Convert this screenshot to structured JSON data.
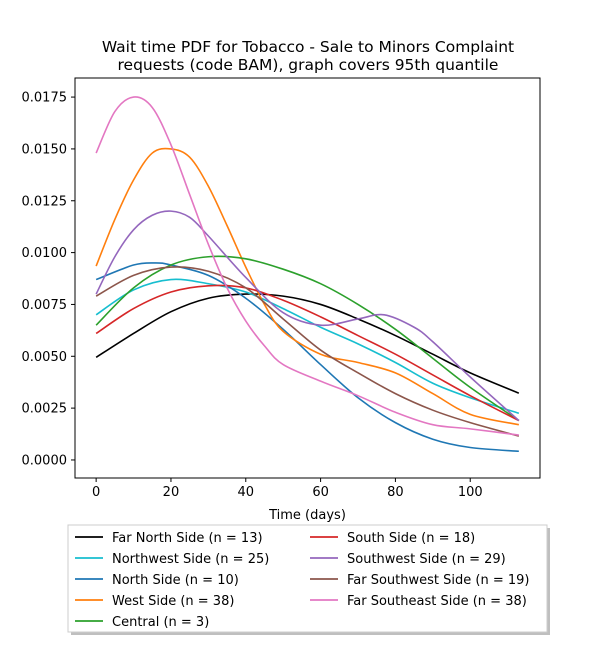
{
  "chart_data": {
    "type": "line",
    "title_lines": [
      "Wait time PDF for Tobacco - Sale to Minors Complaint",
      "requests (code BAM), graph covers 95th quantile"
    ],
    "xlabel": "Time (days)",
    "ylabel": "",
    "xlim": [
      -5.65,
      118.65
    ],
    "ylim": [
      -0.00087,
      0.01842
    ],
    "x_ticks": [
      0,
      20,
      40,
      60,
      80,
      100
    ],
    "x_tick_labels": [
      "0",
      "20",
      "40",
      "60",
      "80",
      "100"
    ],
    "y_ticks": [
      0,
      0.0025,
      0.005,
      0.0075,
      0.01,
      0.0125,
      0.015,
      0.0175
    ],
    "y_tick_labels": [
      "0.0000",
      "0.0025",
      "0.0050",
      "0.0075",
      "0.0100",
      "0.0125",
      "0.0150",
      "0.0175"
    ],
    "grid": false,
    "legend_placement": "below plot, two columns",
    "series": [
      {
        "name": "Far North Side (n = 13)",
        "color": "#000000",
        "points": [
          [
            0,
            0.00495
          ],
          [
            10,
            0.0061
          ],
          [
            20,
            0.00715
          ],
          [
            30,
            0.0078
          ],
          [
            40,
            0.008
          ],
          [
            50,
            0.0079
          ],
          [
            60,
            0.0075
          ],
          [
            70,
            0.0068
          ],
          [
            80,
            0.006
          ],
          [
            90,
            0.0051
          ],
          [
            100,
            0.0042
          ],
          [
            113,
            0.00322
          ]
        ]
      },
      {
        "name": "Northwest Side (n = 25)",
        "color": "#17becf",
        "points": [
          [
            0,
            0.007
          ],
          [
            10,
            0.0082
          ],
          [
            20,
            0.0087
          ],
          [
            30,
            0.0085
          ],
          [
            40,
            0.0081
          ],
          [
            50,
            0.0073
          ],
          [
            60,
            0.0064
          ],
          [
            70,
            0.0056
          ],
          [
            80,
            0.0047
          ],
          [
            90,
            0.0037
          ],
          [
            100,
            0.003
          ],
          [
            113,
            0.00225
          ]
        ]
      },
      {
        "name": "North Side (n = 10)",
        "color": "#1f77b4",
        "points": [
          [
            0,
            0.0087
          ],
          [
            10,
            0.0094
          ],
          [
            16,
            0.0095
          ],
          [
            20,
            0.0094
          ],
          [
            30,
            0.0089
          ],
          [
            40,
            0.0078
          ],
          [
            50,
            0.0063
          ],
          [
            60,
            0.0046
          ],
          [
            70,
            0.003
          ],
          [
            80,
            0.0018
          ],
          [
            90,
            0.001
          ],
          [
            100,
            0.0006
          ],
          [
            113,
            0.00042
          ]
        ]
      },
      {
        "name": "West Side (n = 38)",
        "color": "#ff7f0e",
        "points": [
          [
            0,
            0.00935
          ],
          [
            5,
            0.0116
          ],
          [
            10,
            0.0135
          ],
          [
            15,
            0.0148
          ],
          [
            20,
            0.015
          ],
          [
            25,
            0.0146
          ],
          [
            30,
            0.0132
          ],
          [
            35,
            0.0113
          ],
          [
            40,
            0.0093
          ],
          [
            45,
            0.0075
          ],
          [
            50,
            0.0062
          ],
          [
            60,
            0.0051
          ],
          [
            70,
            0.0047
          ],
          [
            80,
            0.0042
          ],
          [
            90,
            0.0032
          ],
          [
            100,
            0.0022
          ],
          [
            113,
            0.0017
          ]
        ]
      },
      {
        "name": "Central (n = 3)",
        "color": "#2ca02c",
        "points": [
          [
            0,
            0.0065
          ],
          [
            10,
            0.0083
          ],
          [
            20,
            0.0094
          ],
          [
            30,
            0.0098
          ],
          [
            40,
            0.0097
          ],
          [
            50,
            0.0092
          ],
          [
            60,
            0.0085
          ],
          [
            70,
            0.0075
          ],
          [
            80,
            0.0063
          ],
          [
            90,
            0.0049
          ],
          [
            100,
            0.0035
          ],
          [
            113,
            0.0019
          ]
        ]
      },
      {
        "name": "South Side (n = 18)",
        "color": "#d62728",
        "points": [
          [
            0,
            0.0061
          ],
          [
            10,
            0.0073
          ],
          [
            20,
            0.0081
          ],
          [
            30,
            0.0084
          ],
          [
            40,
            0.0083
          ],
          [
            50,
            0.0077
          ],
          [
            60,
            0.0069
          ],
          [
            70,
            0.006
          ],
          [
            80,
            0.0051
          ],
          [
            90,
            0.0041
          ],
          [
            100,
            0.0031
          ],
          [
            113,
            0.0019
          ]
        ]
      },
      {
        "name": "Southwest Side (n = 29)",
        "color": "#9467bd",
        "points": [
          [
            0,
            0.008
          ],
          [
            5,
            0.0098
          ],
          [
            10,
            0.0111
          ],
          [
            15,
            0.0118
          ],
          [
            20,
            0.012
          ],
          [
            25,
            0.0117
          ],
          [
            30,
            0.0108
          ],
          [
            40,
            0.0088
          ],
          [
            50,
            0.0071
          ],
          [
            60,
            0.0065
          ],
          [
            70,
            0.0068
          ],
          [
            77,
            0.007
          ],
          [
            85,
            0.0064
          ],
          [
            90,
            0.0057
          ],
          [
            100,
            0.004
          ],
          [
            113,
            0.0019
          ]
        ]
      },
      {
        "name": "Far Southwest Side (n = 19)",
        "color": "#8c564b",
        "points": [
          [
            0,
            0.0079
          ],
          [
            10,
            0.0089
          ],
          [
            20,
            0.0093
          ],
          [
            30,
            0.0091
          ],
          [
            40,
            0.0083
          ],
          [
            50,
            0.0068
          ],
          [
            60,
            0.0053
          ],
          [
            70,
            0.0042
          ],
          [
            80,
            0.0032
          ],
          [
            90,
            0.0024
          ],
          [
            100,
            0.0018
          ],
          [
            113,
            0.00115
          ]
        ]
      },
      {
        "name": "Far Southeast Side (n = 38)",
        "color": "#e377c2",
        "points": [
          [
            0,
            0.0148
          ],
          [
            5,
            0.0168
          ],
          [
            10,
            0.0175
          ],
          [
            15,
            0.017
          ],
          [
            20,
            0.0152
          ],
          [
            25,
            0.0128
          ],
          [
            30,
            0.0104
          ],
          [
            35,
            0.0083
          ],
          [
            40,
            0.0067
          ],
          [
            45,
            0.0055
          ],
          [
            50,
            0.0046
          ],
          [
            60,
            0.0038
          ],
          [
            70,
            0.0031
          ],
          [
            80,
            0.0023
          ],
          [
            90,
            0.0017
          ],
          [
            100,
            0.0015
          ],
          [
            113,
            0.0012
          ]
        ]
      }
    ]
  }
}
